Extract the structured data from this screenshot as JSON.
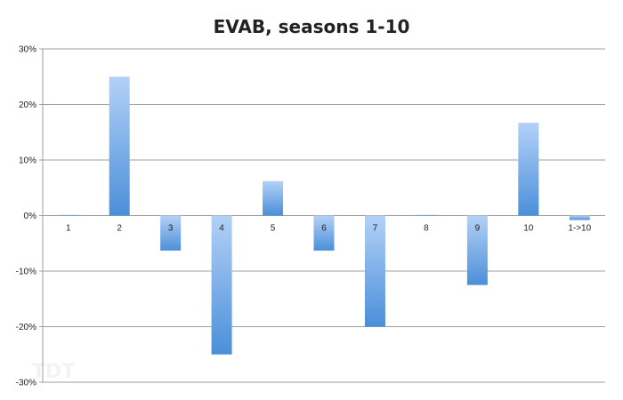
{
  "chart_data": {
    "type": "bar",
    "title": "EVAB, seasons 1-10",
    "xlabel": "",
    "ylabel": "",
    "categories": [
      "1",
      "2",
      "3",
      "4",
      "5",
      "6",
      "7",
      "8",
      "9",
      "10",
      "1->10"
    ],
    "values": [
      0,
      25,
      -6.3,
      -25,
      6.2,
      -6.3,
      -20,
      0,
      -12.5,
      16.7,
      -0.8
    ],
    "ylim": [
      -30,
      30
    ],
    "yticks": [
      30,
      20,
      10,
      0,
      -10,
      -20,
      -30
    ],
    "ytick_labels": [
      "30%",
      "20%",
      "10%",
      "0%",
      "-10%",
      "-20%",
      "-30%"
    ],
    "grid": true,
    "legend": "none",
    "colors": {
      "bar_light": "#b3d1f7",
      "bar_dark": "#4b8fd9",
      "grid": "#9e9e9e"
    }
  }
}
